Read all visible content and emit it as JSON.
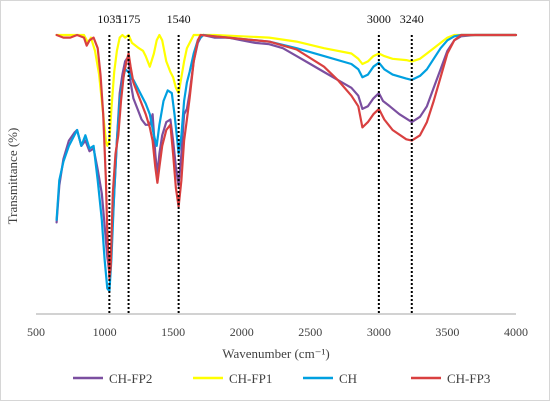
{
  "chart_data": {
    "type": "line",
    "title": "",
    "xlabel": "Wavenumber (cm⁻¹)",
    "ylabel": "Transmittance (%)",
    "xlim": [
      500,
      4000
    ],
    "ylim": [
      0,
      100
    ],
    "x_ticks": [
      500,
      1000,
      1500,
      2000,
      2500,
      3000,
      3500,
      4000
    ],
    "x_tick_labels": [
      "500",
      "1000",
      "1500",
      "2000",
      "2500",
      "3000",
      "3500",
      "4000"
    ],
    "y_ticks_shown": false,
    "grid": false,
    "legend_position": "bottom",
    "annotations": [
      {
        "x": 1035,
        "label": "1035"
      },
      {
        "x": 1175,
        "label": "1175"
      },
      {
        "x": 1540,
        "label": "1540"
      },
      {
        "x": 3000,
        "label": "3000"
      },
      {
        "x": 3240,
        "label": "3240"
      }
    ],
    "series": [
      {
        "name": "CH-FP2",
        "color": "#7b4fa0",
        "points": [
          [
            650,
            29
          ],
          [
            670,
            43
          ],
          [
            700,
            53
          ],
          [
            740,
            60
          ],
          [
            780,
            63
          ],
          [
            800,
            64
          ],
          [
            830,
            58
          ],
          [
            860,
            60
          ],
          [
            890,
            56
          ],
          [
            920,
            57
          ],
          [
            950,
            49
          ],
          [
            980,
            40
          ],
          [
            1000,
            28
          ],
          [
            1020,
            16
          ],
          [
            1035,
            10
          ],
          [
            1050,
            20
          ],
          [
            1070,
            40
          ],
          [
            1090,
            60
          ],
          [
            1110,
            78
          ],
          [
            1130,
            85
          ],
          [
            1150,
            90
          ],
          [
            1175,
            92
          ],
          [
            1190,
            82
          ],
          [
            1210,
            76
          ],
          [
            1240,
            72
          ],
          [
            1270,
            68
          ],
          [
            1300,
            66
          ],
          [
            1330,
            66
          ],
          [
            1350,
            70
          ],
          [
            1370,
            55
          ],
          [
            1385,
            47
          ],
          [
            1400,
            55
          ],
          [
            1420,
            62
          ],
          [
            1450,
            67
          ],
          [
            1480,
            68
          ],
          [
            1500,
            60
          ],
          [
            1520,
            50
          ],
          [
            1540,
            43
          ],
          [
            1560,
            55
          ],
          [
            1580,
            70
          ],
          [
            1600,
            72
          ],
          [
            1620,
            78
          ],
          [
            1650,
            90
          ],
          [
            1680,
            97
          ],
          [
            1700,
            99
          ],
          [
            1720,
            100
          ],
          [
            1800,
            99
          ],
          [
            1900,
            99
          ],
          [
            2000,
            98
          ],
          [
            2100,
            97
          ],
          [
            2200,
            96.5
          ],
          [
            2300,
            95
          ],
          [
            2400,
            92
          ],
          [
            2500,
            89
          ],
          [
            2600,
            86
          ],
          [
            2700,
            83
          ],
          [
            2800,
            80
          ],
          [
            2850,
            77
          ],
          [
            2880,
            72
          ],
          [
            2920,
            73
          ],
          [
            2960,
            76
          ],
          [
            3000,
            78
          ],
          [
            3030,
            75
          ],
          [
            3080,
            73
          ],
          [
            3150,
            70
          ],
          [
            3240,
            67
          ],
          [
            3300,
            69
          ],
          [
            3350,
            73
          ],
          [
            3400,
            80
          ],
          [
            3450,
            87
          ],
          [
            3500,
            94
          ],
          [
            3550,
            98
          ],
          [
            3600,
            99.5
          ],
          [
            3700,
            100
          ],
          [
            4000,
            100
          ]
        ]
      },
      {
        "name": "CH-FP1",
        "color": "#ffff00",
        "points": [
          [
            650,
            100
          ],
          [
            700,
            100
          ],
          [
            800,
            100
          ],
          [
            850,
            100
          ],
          [
            880,
            97
          ],
          [
            900,
            99
          ],
          [
            930,
            94
          ],
          [
            960,
            85
          ],
          [
            990,
            70
          ],
          [
            1010,
            60
          ],
          [
            1020,
            58
          ],
          [
            1035,
            60
          ],
          [
            1050,
            72
          ],
          [
            1070,
            86
          ],
          [
            1090,
            94
          ],
          [
            1110,
            99
          ],
          [
            1130,
            100
          ],
          [
            1150,
            99
          ],
          [
            1175,
            100
          ],
          [
            1200,
            97
          ],
          [
            1250,
            95
          ],
          [
            1280,
            94
          ],
          [
            1300,
            92
          ],
          [
            1330,
            88
          ],
          [
            1360,
            93
          ],
          [
            1380,
            98
          ],
          [
            1400,
            100
          ],
          [
            1420,
            98
          ],
          [
            1450,
            90
          ],
          [
            1480,
            86
          ],
          [
            1500,
            84
          ],
          [
            1520,
            80
          ],
          [
            1540,
            78
          ],
          [
            1560,
            84
          ],
          [
            1580,
            90
          ],
          [
            1600,
            95
          ],
          [
            1650,
            100
          ],
          [
            1700,
            100
          ],
          [
            1800,
            100
          ],
          [
            2000,
            99.5
          ],
          [
            2200,
            99
          ],
          [
            2400,
            97.5
          ],
          [
            2600,
            95
          ],
          [
            2800,
            93
          ],
          [
            2850,
            91
          ],
          [
            2880,
            89
          ],
          [
            2920,
            90
          ],
          [
            2960,
            92
          ],
          [
            3000,
            93
          ],
          [
            3040,
            92
          ],
          [
            3100,
            91
          ],
          [
            3200,
            90.5
          ],
          [
            3240,
            90
          ],
          [
            3300,
            91
          ],
          [
            3350,
            93
          ],
          [
            3400,
            95
          ],
          [
            3450,
            97
          ],
          [
            3500,
            99
          ],
          [
            3550,
            100
          ],
          [
            4000,
            100
          ]
        ]
      },
      {
        "name": "CH",
        "color": "#00a0e0",
        "points": [
          [
            650,
            30
          ],
          [
            670,
            45
          ],
          [
            700,
            52
          ],
          [
            740,
            58
          ],
          [
            780,
            62
          ],
          [
            800,
            64
          ],
          [
            830,
            58
          ],
          [
            860,
            62
          ],
          [
            890,
            57
          ],
          [
            920,
            58
          ],
          [
            950,
            45
          ],
          [
            980,
            30
          ],
          [
            1000,
            15
          ],
          [
            1020,
            4
          ],
          [
            1035,
            3
          ],
          [
            1050,
            15
          ],
          [
            1070,
            40
          ],
          [
            1090,
            60
          ],
          [
            1110,
            75
          ],
          [
            1130,
            82
          ],
          [
            1150,
            87
          ],
          [
            1175,
            86
          ],
          [
            1190,
            84
          ],
          [
            1210,
            83
          ],
          [
            1240,
            80
          ],
          [
            1270,
            77
          ],
          [
            1300,
            74
          ],
          [
            1330,
            70
          ],
          [
            1360,
            62
          ],
          [
            1380,
            58
          ],
          [
            1400,
            66
          ],
          [
            1430,
            75
          ],
          [
            1460,
            79
          ],
          [
            1490,
            78
          ],
          [
            1510,
            70
          ],
          [
            1530,
            60
          ],
          [
            1540,
            55
          ],
          [
            1560,
            62
          ],
          [
            1580,
            75
          ],
          [
            1600,
            82
          ],
          [
            1620,
            86
          ],
          [
            1650,
            93
          ],
          [
            1680,
            98
          ],
          [
            1700,
            99
          ],
          [
            1720,
            100
          ],
          [
            1800,
            99.5
          ],
          [
            1900,
            99
          ],
          [
            2000,
            98.5
          ],
          [
            2200,
            97.5
          ],
          [
            2400,
            95
          ],
          [
            2600,
            92
          ],
          [
            2800,
            89
          ],
          [
            2850,
            87
          ],
          [
            2880,
            84
          ],
          [
            2920,
            85
          ],
          [
            2960,
            88
          ],
          [
            3000,
            89.5
          ],
          [
            3040,
            87
          ],
          [
            3100,
            85
          ],
          [
            3200,
            83.5
          ],
          [
            3240,
            83
          ],
          [
            3300,
            84.5
          ],
          [
            3350,
            87
          ],
          [
            3400,
            91
          ],
          [
            3450,
            95
          ],
          [
            3500,
            98
          ],
          [
            3550,
            99.5
          ],
          [
            3600,
            100
          ],
          [
            4000,
            100
          ]
        ]
      },
      {
        "name": "CH-FP3",
        "color": "#d94040",
        "points": [
          [
            650,
            100
          ],
          [
            700,
            99
          ],
          [
            750,
            99
          ],
          [
            800,
            100
          ],
          [
            850,
            99
          ],
          [
            870,
            96
          ],
          [
            890,
            98
          ],
          [
            920,
            99
          ],
          [
            950,
            95
          ],
          [
            970,
            85
          ],
          [
            990,
            70
          ],
          [
            1010,
            45
          ],
          [
            1020,
            25
          ],
          [
            1035,
            8
          ],
          [
            1045,
            12
          ],
          [
            1060,
            40
          ],
          [
            1080,
            55
          ],
          [
            1100,
            62
          ],
          [
            1120,
            75
          ],
          [
            1140,
            85
          ],
          [
            1160,
            90
          ],
          [
            1175,
            93
          ],
          [
            1190,
            88
          ],
          [
            1210,
            82
          ],
          [
            1240,
            78
          ],
          [
            1270,
            74
          ],
          [
            1300,
            70
          ],
          [
            1330,
            65
          ],
          [
            1350,
            60
          ],
          [
            1370,
            50
          ],
          [
            1385,
            44
          ],
          [
            1400,
            50
          ],
          [
            1420,
            58
          ],
          [
            1450,
            64
          ],
          [
            1480,
            66
          ],
          [
            1500,
            55
          ],
          [
            1520,
            42
          ],
          [
            1540,
            35
          ],
          [
            1560,
            45
          ],
          [
            1580,
            60
          ],
          [
            1600,
            68
          ],
          [
            1620,
            76
          ],
          [
            1650,
            90
          ],
          [
            1680,
            98
          ],
          [
            1700,
            100
          ],
          [
            1800,
            99.5
          ],
          [
            1900,
            99
          ],
          [
            2000,
            98.5
          ],
          [
            2200,
            97.5
          ],
          [
            2400,
            94.5
          ],
          [
            2600,
            88
          ],
          [
            2700,
            83
          ],
          [
            2800,
            77
          ],
          [
            2850,
            73
          ],
          [
            2880,
            65
          ],
          [
            2920,
            67
          ],
          [
            2960,
            70
          ],
          [
            3000,
            72
          ],
          [
            3040,
            68
          ],
          [
            3100,
            64
          ],
          [
            3200,
            60.5
          ],
          [
            3240,
            60
          ],
          [
            3300,
            62
          ],
          [
            3350,
            67
          ],
          [
            3400,
            75
          ],
          [
            3450,
            84
          ],
          [
            3500,
            93
          ],
          [
            3550,
            98
          ],
          [
            3600,
            100
          ],
          [
            4000,
            100
          ]
        ]
      }
    ]
  }
}
